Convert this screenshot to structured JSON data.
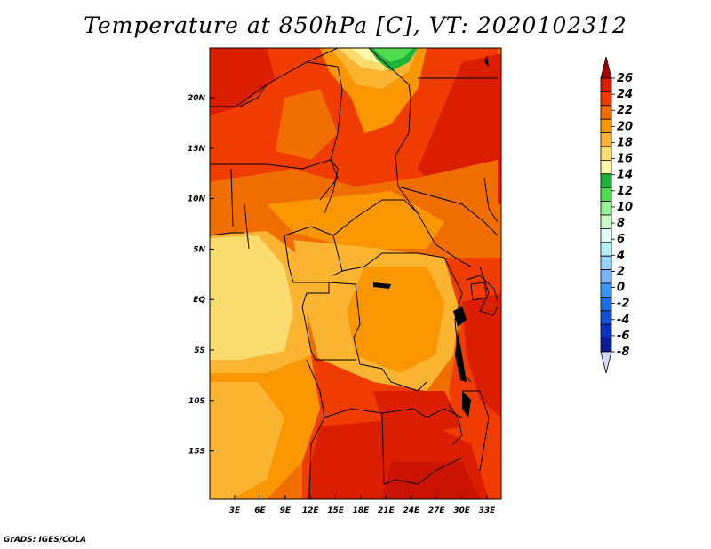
{
  "title": "Temperature at 850hPa [C], VT: 2020102312",
  "credit": "GrADS: IGES/COLA",
  "map": {
    "latitude_labels": [
      "20N",
      "15N",
      "10N",
      "5N",
      "EQ",
      "5S",
      "10S",
      "15S"
    ],
    "longitude_labels": [
      "3E",
      "6E",
      "9E",
      "12E",
      "15E",
      "18E",
      "21E",
      "24E",
      "27E",
      "30E",
      "33E"
    ]
  },
  "colorbar": {
    "labels": [
      "26",
      "24",
      "22",
      "20",
      "18",
      "16",
      "14",
      "12",
      "10",
      "8",
      "6",
      "4",
      "2",
      "0",
      "-2",
      "-4",
      "-6",
      "-8"
    ],
    "colors": [
      "#a50000",
      "#dc1e00",
      "#f03c00",
      "#f06e00",
      "#fa9600",
      "#fab432",
      "#fadc6e",
      "#fff8aa",
      "#1eb43c",
      "#50dc50",
      "#96f096",
      "#c8fac8",
      "#e1fafa",
      "#b4f0fa",
      "#96d2fa",
      "#78b4fa",
      "#3c96f5",
      "#1e6ee6",
      "#1450d2",
      "#0a32be",
      "#0a1e96",
      "#d8d8f8"
    ]
  }
}
